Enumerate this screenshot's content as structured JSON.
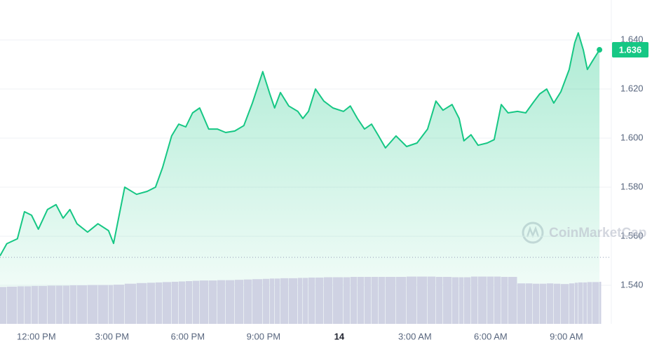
{
  "chart_data": {
    "type": "line",
    "watermark": "CoinMarketCap",
    "x": [
      -1.44,
      -1.17,
      -0.75,
      -0.47,
      -0.19,
      0.08,
      0.44,
      0.78,
      1.06,
      1.33,
      1.61,
      2.03,
      2.44,
      2.86,
      3.06,
      3.5,
      3.97,
      4.39,
      4.72,
      5,
      5.36,
      5.64,
      5.92,
      6.19,
      6.47,
      6.83,
      7.17,
      7.5,
      7.86,
      8.22,
      8.56,
      8.97,
      9.25,
      9.44,
      9.67,
      10,
      10.36,
      10.56,
      10.78,
      11.06,
      11.39,
      11.75,
      12.17,
      12.44,
      12.72,
      13,
      13.28,
      13.56,
      13.83,
      14.25,
      14.67,
      15.08,
      15.5,
      15.83,
      16.11,
      16.47,
      16.75,
      16.94,
      17.22,
      17.5,
      17.86,
      18.14,
      18.42,
      18.69,
      19.06,
      19.39,
      19.67,
      19.94,
      20.22,
      20.5,
      20.78,
      21.11,
      21.33,
      21.47,
      21.67,
      21.83,
      22.03,
      22.31
    ],
    "series": [
      {
        "color": "#16c784",
        "values": [
          1.552,
          1.557,
          1.559,
          1.57,
          1.5686,
          1.5629,
          1.5709,
          1.5729,
          1.5674,
          1.5709,
          1.5651,
          1.5617,
          1.5651,
          1.5623,
          1.5571,
          1.58,
          1.5771,
          1.5783,
          1.58,
          1.588,
          1.6009,
          1.6057,
          1.6046,
          1.6103,
          1.6123,
          1.6037,
          1.6037,
          1.6023,
          1.6029,
          1.6051,
          1.6143,
          1.6271,
          1.618,
          1.6123,
          1.6186,
          1.6131,
          1.6109,
          1.608,
          1.6109,
          1.62,
          1.6151,
          1.6123,
          1.6109,
          1.6131,
          1.608,
          1.6037,
          1.6057,
          1.6009,
          1.596,
          1.6009,
          1.5966,
          1.598,
          1.6037,
          1.6151,
          1.6114,
          1.6137,
          1.608,
          1.5989,
          1.6014,
          1.5971,
          1.598,
          1.5994,
          1.6137,
          1.6103,
          1.6109,
          1.6103,
          1.6143,
          1.618,
          1.62,
          1.6143,
          1.6189,
          1.628,
          1.6389,
          1.6429,
          1.636,
          1.628,
          1.6314,
          1.636
        ]
      },
      {
        "color": "#cfd2e3",
        "axis": "y2",
        "values": [
          11.4,
          11.5,
          11.6,
          11.6,
          11.7,
          11.7,
          11.8,
          11.8,
          11.8,
          11.9,
          11.9,
          12.0,
          12.0,
          12.0,
          12.1,
          12.4,
          12.6,
          12.7,
          12.8,
          12.9,
          13.0,
          13.1,
          13.2,
          13.3,
          13.4,
          13.4,
          13.5,
          13.5,
          13.6,
          13.7,
          13.8,
          13.9,
          14.0,
          14.0,
          14.1,
          14.1,
          14.2,
          14.2,
          14.3,
          14.3,
          14.4,
          14.4,
          14.4,
          14.5,
          14.5,
          14.5,
          14.5,
          14.5,
          14.5,
          14.5,
          14.6,
          14.6,
          14.6,
          14.5,
          14.5,
          14.4,
          14.4,
          14.4,
          14.6,
          14.6,
          14.6,
          14.6,
          14.5,
          14.5,
          12.5,
          12.5,
          12.4,
          12.4,
          12.5,
          12.4,
          12.3,
          12.5,
          12.7,
          12.8,
          12.8,
          12.9,
          12.9,
          13.0
        ]
      }
    ],
    "reference": 1.5514,
    "current_price": 1.636,
    "xlim": [
      -1.44,
      22.78
    ],
    "ylim": [
      1.5243,
      1.6563
    ],
    "y2lim": [
      0,
      100
    ],
    "xticks": [
      {
        "value": 0,
        "label": "12:00 PM"
      },
      {
        "value": 3,
        "label": "3:00 PM"
      },
      {
        "value": 6,
        "label": "6:00 PM"
      },
      {
        "value": 9,
        "label": "9:00 PM"
      },
      {
        "value": 12,
        "label": "14"
      },
      {
        "value": 15,
        "label": "3:00 AM"
      },
      {
        "value": 18,
        "label": "6:00 AM"
      },
      {
        "value": 21,
        "label": "9:00 AM"
      }
    ],
    "yticks": [
      {
        "value": 1.54,
        "label": "1.540"
      },
      {
        "value": 1.56,
        "label": "1.560"
      },
      {
        "value": 1.58,
        "label": "1.580"
      },
      {
        "value": 1.6,
        "label": "1.600"
      },
      {
        "value": 1.62,
        "label": "1.620"
      },
      {
        "value": 1.64,
        "label": "1.640"
      }
    ],
    "grid": true
  }
}
